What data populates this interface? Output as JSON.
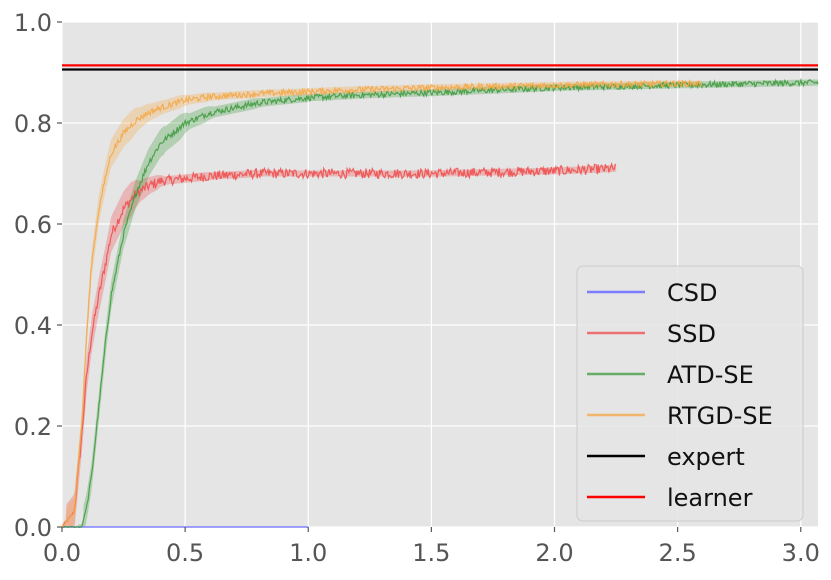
{
  "chart_data": {
    "type": "line",
    "title": "",
    "xlabel": "",
    "ylabel": "",
    "xlim": [
      0,
      3.07
    ],
    "ylim": [
      0,
      1.0
    ],
    "grid": true,
    "background": "#e5e5e5",
    "legend_position": "lower-right",
    "x_ticks": [
      "0.0",
      "0.5",
      "1.0",
      "1.5",
      "2.0",
      "2.5",
      "3.0"
    ],
    "y_ticks": [
      "0.0",
      "0.2",
      "0.4",
      "0.6",
      "0.8",
      "1.0"
    ],
    "series": [
      {
        "name": "CSD",
        "color": "#6b6bff",
        "x": [
          0.0,
          1.0
        ],
        "y": [
          0.0,
          0.0
        ]
      },
      {
        "name": "SSD",
        "color": "#f04a4a",
        "x": [
          0.0,
          0.05,
          0.08,
          0.1,
          0.12,
          0.15,
          0.18,
          0.2,
          0.25,
          0.3,
          0.35,
          0.4,
          0.5,
          0.6,
          0.8,
          1.0,
          1.2,
          1.5,
          2.0,
          2.25
        ],
        "y": [
          0.0,
          0.03,
          0.18,
          0.3,
          0.38,
          0.46,
          0.53,
          0.58,
          0.63,
          0.66,
          0.675,
          0.685,
          0.69,
          0.695,
          0.7,
          0.7,
          0.7,
          0.7,
          0.705,
          0.71
        ]
      },
      {
        "name": "ATD-SE",
        "color": "#3c9a3c",
        "x": [
          0.0,
          0.08,
          0.1,
          0.12,
          0.15,
          0.18,
          0.2,
          0.25,
          0.3,
          0.35,
          0.4,
          0.5,
          0.6,
          0.8,
          1.0,
          1.2,
          1.5,
          2.0,
          2.5,
          3.07
        ],
        "y": [
          0.0,
          0.0,
          0.04,
          0.1,
          0.24,
          0.38,
          0.46,
          0.58,
          0.66,
          0.72,
          0.76,
          0.8,
          0.82,
          0.84,
          0.85,
          0.855,
          0.86,
          0.87,
          0.875,
          0.88
        ]
      },
      {
        "name": "RTGD-SE",
        "color": "#f5a742",
        "x": [
          0.0,
          0.05,
          0.08,
          0.1,
          0.12,
          0.15,
          0.18,
          0.2,
          0.25,
          0.3,
          0.35,
          0.4,
          0.5,
          0.6,
          0.8,
          1.0,
          1.2,
          1.5,
          2.0,
          2.5,
          2.6
        ],
        "y": [
          0.0,
          0.03,
          0.2,
          0.38,
          0.52,
          0.63,
          0.7,
          0.74,
          0.78,
          0.805,
          0.82,
          0.83,
          0.845,
          0.852,
          0.858,
          0.862,
          0.866,
          0.87,
          0.875,
          0.878,
          0.878
        ]
      },
      {
        "name": "expert",
        "color": "#000000",
        "x": [
          0.0,
          3.07
        ],
        "y": [
          0.906,
          0.906
        ]
      },
      {
        "name": "learner",
        "color": "#ff0000",
        "x": [
          0.0,
          3.07
        ],
        "y": [
          0.914,
          0.914
        ]
      }
    ]
  }
}
